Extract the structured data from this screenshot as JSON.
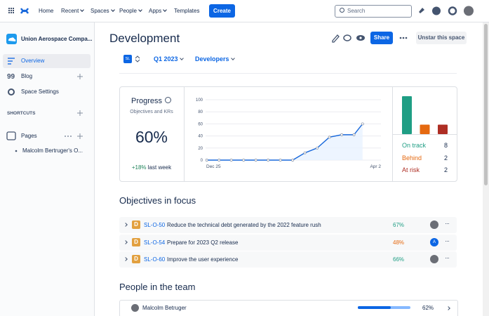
{
  "nav": {
    "items": [
      "Home",
      "Recent",
      "Spaces",
      "People",
      "Apps",
      "Templates"
    ],
    "create": "Create",
    "search": "Search"
  },
  "sidebar": {
    "space": "Union Aerospace Compa...",
    "items": [
      "Overview",
      "Blog",
      "Space Settings"
    ],
    "shortcuts": "SHORTCUTS",
    "pages": "Pages",
    "tree": [
      "Malcolm Bertruger's O..."
    ]
  },
  "header": {
    "title": "Development",
    "share": "Share",
    "unstar": "Unstar this space"
  },
  "filters": {
    "avatar": "SL",
    "quarter": "Q1 2023",
    "team": "Developers"
  },
  "progress": {
    "title": "Progress",
    "subtitle": "Objectives and KRs",
    "value": "60%",
    "change": "+18%",
    "change_note": "last week"
  },
  "chart": {
    "type": "line",
    "color": "#1868db",
    "x_labels": [
      "Dec 25",
      "Apr 2"
    ],
    "x": [
      0,
      1,
      2,
      3,
      4,
      5,
      6,
      7,
      8,
      9,
      10,
      11,
      12,
      12.7
    ],
    "values": [
      0,
      0,
      0,
      0,
      0,
      0,
      0,
      0,
      12,
      20,
      38,
      42,
      42,
      60
    ],
    "xlim": [
      -0.1,
      14.2
    ],
    "ylim": [
      0,
      100
    ],
    "yticks": [
      0,
      20,
      40,
      60,
      80,
      100
    ]
  },
  "status": {
    "type": "bar",
    "categories": [
      "On track",
      "Behind",
      "At risk"
    ],
    "values": [
      8,
      2,
      2
    ],
    "colors": [
      "#1f9e84",
      "#e56910",
      "#ae2e24"
    ]
  },
  "objectives": {
    "title": "Objectives in focus",
    "rows": [
      {
        "icon": "D",
        "key": "SL-O-50",
        "name": "Reduce the technical debt generated by the 2022 feature rush",
        "progress": "67%",
        "color": "#1f9e84"
      },
      {
        "icon": "D",
        "key": "SL-O-54",
        "name": "Prepare for 2023 Q2 release",
        "progress": "48%",
        "color": "#e56910",
        "owner": "A"
      },
      {
        "icon": "D",
        "key": "SL-O-60",
        "name": "Improve the user experience",
        "progress": "66%",
        "color": "#1f9e84"
      }
    ]
  },
  "people": {
    "title": "People in the team",
    "rows": [
      {
        "name": "Malcolm Betruger",
        "progress": 62,
        "progress_label": "62%"
      }
    ]
  }
}
